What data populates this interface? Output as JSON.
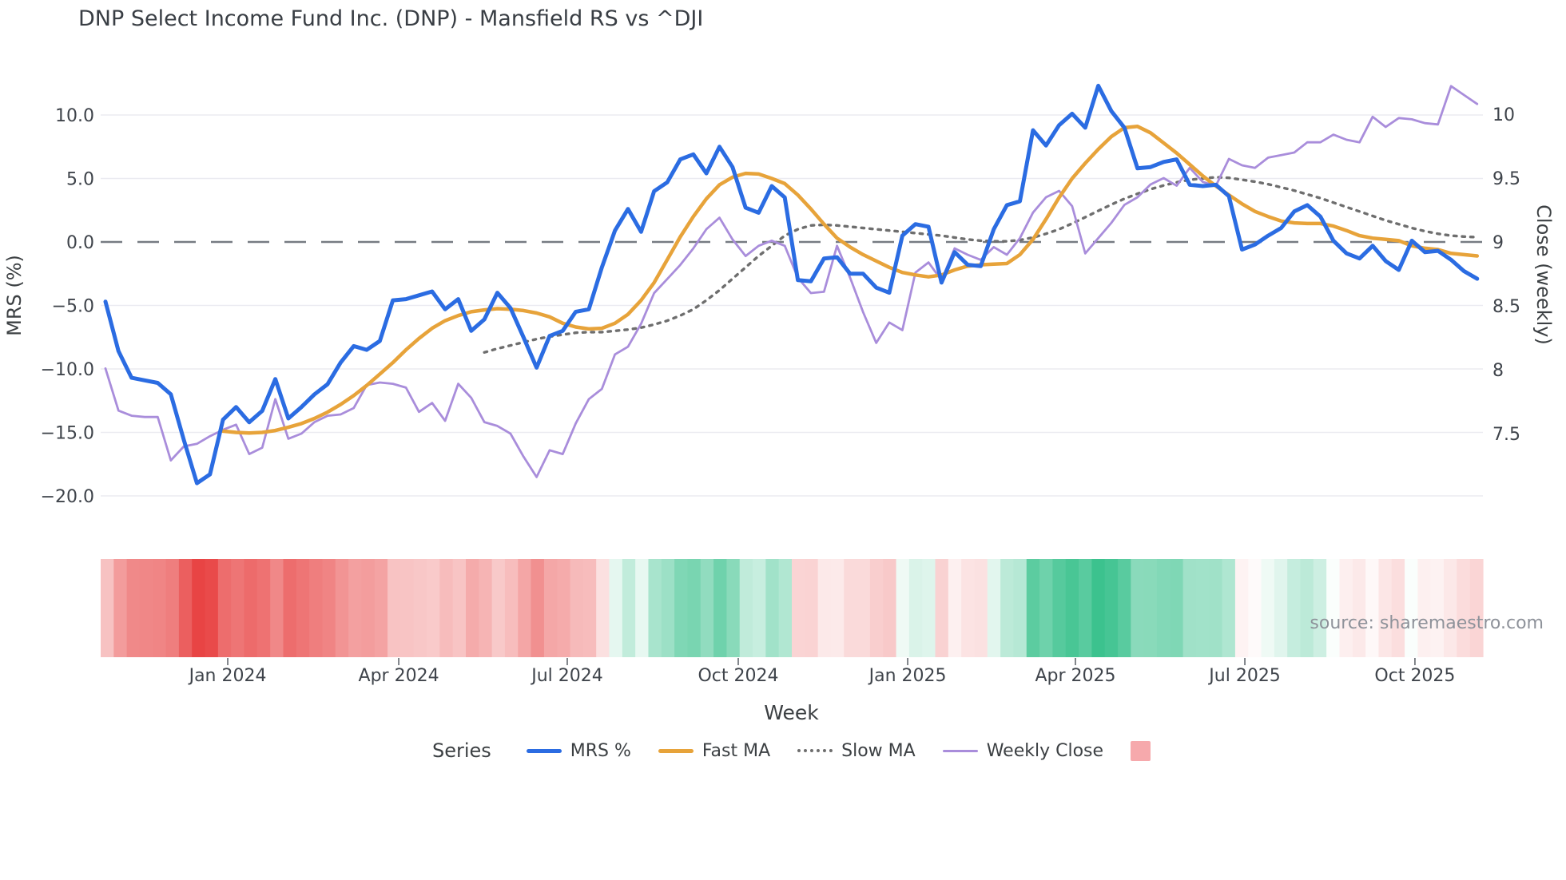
{
  "title": "DNP Select Income Fund Inc. (DNP) - Mansfield RS vs ^DJI",
  "source_note": "source: sharemaestro.com",
  "legend": {
    "title": "Series",
    "items": [
      {
        "label": "MRS %",
        "swatch": "line",
        "color": "#2b6ce2"
      },
      {
        "label": "Fast MA",
        "swatch": "line",
        "color": "#e7a33a"
      },
      {
        "label": "Slow MA",
        "swatch": "dotted",
        "color": "#6e6e6e"
      },
      {
        "label": "Weekly Close",
        "swatch": "thin",
        "color": "#a98ddb"
      },
      {
        "label": "",
        "swatch": "square",
        "color": "#f6a9ac"
      }
    ]
  },
  "chart_data": {
    "type": "line",
    "title": "DNP Select Income Fund Inc. (DNP) - Mansfield RS vs ^DJI",
    "xlabel": "Week",
    "ylabel_left": "MRS (%)",
    "ylabel_right": "Close (weekly)",
    "grid": "horizontal-only",
    "zero_line": {
      "value": 0,
      "style": "long-dash",
      "color": "#767b82"
    },
    "x_tick_labels": [
      "Jan 2024",
      "Apr 2024",
      "Jul 2024",
      "Oct 2024",
      "Jan 2025",
      "Apr 2025",
      "Jul 2025",
      "Oct 2025"
    ],
    "x_tick_weeks": [
      9.36,
      22.45,
      35.35,
      48.44,
      61.41,
      74.25,
      87.22,
      100.24
    ],
    "y_ticks_left": {
      "labels": [
        "10.0",
        "5.0",
        "0.0",
        "−5.0",
        "−10.0",
        "−15.0",
        "−20.0"
      ],
      "values": [
        10,
        5,
        0,
        -5,
        -10,
        -15,
        -20
      ]
    },
    "y_ticks_right": {
      "labels": [
        "10",
        "9.5",
        "9",
        "8.5",
        "8",
        "7.5"
      ],
      "values": [
        10,
        9.5,
        9,
        8.5,
        8,
        7.5
      ]
    },
    "ylim_left": [
      -21.5,
      13.7
    ],
    "ylim_right": [
      7.0,
      10.5
    ],
    "weeks_total": 106,
    "series": [
      {
        "name": "MRS %",
        "axis": "left",
        "color": "#2b6ce2",
        "style": "solid",
        "width": 5,
        "start_week": 0,
        "values": [
          -4.7,
          -8.6,
          -10.7,
          -10.9,
          -11.1,
          -12.0,
          -15.6,
          -19.0,
          -18.3,
          -14.0,
          -13.0,
          -14.2,
          -13.3,
          -10.8,
          -13.9,
          -13.0,
          -12.0,
          -11.2,
          -9.5,
          -8.2,
          -8.5,
          -7.8,
          -4.6,
          -4.5,
          -4.2,
          -3.9,
          -5.3,
          -4.5,
          -7.0,
          -6.1,
          -4.0,
          -5.2,
          -7.5,
          -9.9,
          -7.4,
          -7.0,
          -5.5,
          -5.3,
          -2.0,
          0.9,
          2.6,
          0.8,
          4.0,
          4.7,
          6.5,
          6.9,
          5.4,
          7.5,
          5.9,
          2.7,
          2.3,
          4.4,
          3.5,
          -3.0,
          -3.1,
          -1.3,
          -1.2,
          -2.5,
          -2.5,
          -3.6,
          -4.0,
          0.5,
          1.4,
          1.2,
          -3.2,
          -0.8,
          -1.8,
          -1.9,
          1.0,
          2.9,
          3.2,
          8.8,
          7.6,
          9.2,
          10.1,
          9.0,
          12.3,
          10.3,
          9.0,
          5.8,
          5.9,
          6.3,
          6.5,
          4.5,
          4.4,
          4.5,
          3.6,
          -0.6,
          -0.2,
          0.5,
          1.1,
          2.4,
          2.9,
          2.0,
          0.1,
          -0.9,
          -1.3,
          -0.3,
          -1.5,
          -2.2,
          0.1,
          -0.8,
          -0.7,
          -1.4,
          -2.3,
          -2.9
        ]
      },
      {
        "name": "Fast MA",
        "axis": "left",
        "color": "#e7a33a",
        "style": "solid",
        "width": 4.5,
        "start_week": 9,
        "values": [
          -14.9,
          -15.0,
          -15.05,
          -15.0,
          -14.85,
          -14.6,
          -14.3,
          -13.9,
          -13.4,
          -12.8,
          -12.1,
          -11.3,
          -10.4,
          -9.5,
          -8.5,
          -7.6,
          -6.8,
          -6.2,
          -5.8,
          -5.5,
          -5.35,
          -5.25,
          -5.3,
          -5.4,
          -5.6,
          -5.9,
          -6.4,
          -6.7,
          -6.85,
          -6.8,
          -6.4,
          -5.7,
          -4.6,
          -3.2,
          -1.4,
          0.4,
          2.0,
          3.4,
          4.5,
          5.1,
          5.4,
          5.35,
          5.0,
          4.6,
          3.7,
          2.6,
          1.4,
          0.3,
          -0.4,
          -1.0,
          -1.5,
          -2.0,
          -2.4,
          -2.6,
          -2.75,
          -2.6,
          -2.2,
          -1.9,
          -1.8,
          -1.75,
          -1.7,
          -1.0,
          0.2,
          1.8,
          3.5,
          5.0,
          6.2,
          7.3,
          8.3,
          9.0,
          9.1,
          8.6,
          7.8,
          7.0,
          6.1,
          5.2,
          4.4,
          3.7,
          3.0,
          2.4,
          2.0,
          1.65,
          1.5,
          1.45,
          1.45,
          1.25,
          0.9,
          0.5,
          0.3,
          0.2,
          0.1,
          -0.3,
          -0.5,
          -0.6,
          -0.9,
          -1.0,
          -1.1
        ]
      },
      {
        "name": "Slow MA",
        "axis": "left",
        "color": "#6e6e6e",
        "style": "dotted",
        "width": 3.4,
        "start_week": 29,
        "values": [
          -8.7,
          -8.4,
          -8.15,
          -7.9,
          -7.65,
          -7.45,
          -7.3,
          -7.15,
          -7.1,
          -7.1,
          -7.0,
          -6.9,
          -6.75,
          -6.5,
          -6.2,
          -5.8,
          -5.3,
          -4.6,
          -3.8,
          -2.9,
          -2.0,
          -1.1,
          -0.3,
          0.5,
          1.0,
          1.3,
          1.35,
          1.3,
          1.2,
          1.1,
          1.0,
          0.9,
          0.8,
          0.7,
          0.6,
          0.5,
          0.35,
          0.2,
          0.1,
          0.05,
          0.05,
          0.15,
          0.35,
          0.65,
          1.0,
          1.45,
          1.95,
          2.45,
          2.95,
          3.4,
          3.8,
          4.15,
          4.45,
          4.7,
          4.9,
          5.0,
          5.1,
          5.05,
          4.9,
          4.75,
          4.55,
          4.3,
          4.05,
          3.75,
          3.45,
          3.1,
          2.75,
          2.4,
          2.05,
          1.7,
          1.4,
          1.1,
          0.85,
          0.65,
          0.5,
          0.42,
          0.38
        ]
      },
      {
        "name": "Weekly Close",
        "axis": "right",
        "color": "#a98ddb",
        "style": "solid",
        "width": 2.8,
        "start_week": 0,
        "values": [
          8.01,
          7.68,
          7.64,
          7.63,
          7.63,
          7.29,
          7.4,
          7.42,
          7.48,
          7.53,
          7.57,
          7.34,
          7.39,
          7.77,
          7.46,
          7.5,
          7.59,
          7.64,
          7.65,
          7.7,
          7.88,
          7.9,
          7.89,
          7.86,
          7.67,
          7.74,
          7.6,
          7.89,
          7.78,
          7.59,
          7.56,
          7.5,
          7.32,
          7.16,
          7.37,
          7.34,
          7.58,
          7.77,
          7.85,
          8.12,
          8.18,
          8.36,
          8.6,
          8.71,
          8.82,
          8.95,
          9.1,
          9.19,
          9.02,
          8.89,
          8.97,
          9.01,
          8.97,
          8.72,
          8.6,
          8.61,
          8.97,
          8.72,
          8.45,
          8.21,
          8.37,
          8.31,
          8.76,
          8.84,
          8.7,
          8.95,
          8.9,
          8.86,
          8.96,
          8.9,
          9.03,
          9.23,
          9.35,
          9.4,
          9.28,
          8.91,
          9.03,
          9.15,
          9.29,
          9.35,
          9.45,
          9.5,
          9.44,
          9.58,
          9.47,
          9.44,
          9.65,
          9.6,
          9.58,
          9.66,
          9.68,
          9.7,
          9.78,
          9.78,
          9.84,
          9.8,
          9.78,
          9.98,
          9.9,
          9.97,
          9.96,
          9.93,
          9.92,
          10.22,
          10.15,
          10.08
        ]
      }
    ],
    "heatmap": {
      "description": "weekly strip colored by MRS % sign and magnitude",
      "positive_color": "#3cc28e",
      "negative_color": "#e84444",
      "positive_full_scale": 11,
      "negative_full_scale": 19
    }
  }
}
